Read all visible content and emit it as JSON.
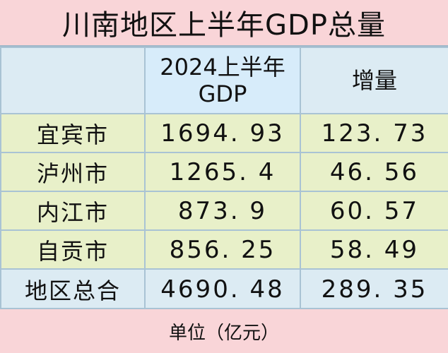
{
  "title": "川南地区上半年GDP总量",
  "header": {
    "col1": "",
    "col2_line1": "2024上半年",
    "col2_line2": "GDP",
    "col3": "增量"
  },
  "rows": [
    {
      "city": "宜宾市",
      "gdp": "1694. 93",
      "increase": "123. 73"
    },
    {
      "city": "泸州市",
      "gdp": "1265. 4",
      "increase": "46. 56"
    },
    {
      "city": "内江市",
      "gdp": "873. 9",
      "increase": "60. 57"
    },
    {
      "city": "自贡市",
      "gdp": "856. 25",
      "increase": "58. 49"
    }
  ],
  "total": {
    "label": "地区总合",
    "gdp": "4690. 48",
    "increase": "289. 35"
  },
  "footer": "单位（亿元）",
  "colors": {
    "title_bg": "#f9d5d8",
    "header_bg": "#dcebf3",
    "row_bg": "#e8f0c9",
    "border": "#a9c3d4"
  }
}
